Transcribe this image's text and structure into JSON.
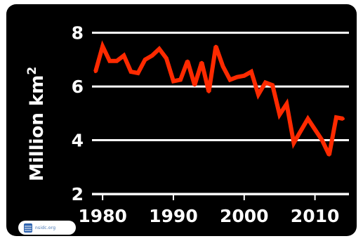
{
  "chart_data": {
    "type": "line",
    "title": "",
    "xlabel": "",
    "ylabel": "Million km",
    "ylabel_superscript": "2",
    "xlim": [
      1978.5,
      2014.8
    ],
    "ylim": [
      2,
      8.2
    ],
    "xticks": [
      1980,
      1990,
      2000,
      2010
    ],
    "yticks": [
      2,
      4,
      6,
      8
    ],
    "grid": "horizontal",
    "colors": {
      "line": "#ff2a00",
      "grid": "#ffffff",
      "background": "#000000",
      "text": "#ffffff"
    },
    "x": [
      1979,
      1980,
      1981,
      1982,
      1983,
      1984,
      1985,
      1986,
      1987,
      1988,
      1989,
      1990,
      1991,
      1992,
      1993,
      1994,
      1995,
      1996,
      1997,
      1998,
      1999,
      2000,
      2001,
      2002,
      2003,
      2004,
      2005,
      2006,
      2007,
      2008,
      2009,
      2010,
      2011,
      2012,
      2013,
      2014
    ],
    "series": [
      {
        "values": [
          6.55,
          7.5,
          6.95,
          6.95,
          7.15,
          6.55,
          6.5,
          7.0,
          7.15,
          7.4,
          7.05,
          6.2,
          6.25,
          6.95,
          6.05,
          6.9,
          5.8,
          7.5,
          6.75,
          6.25,
          6.35,
          6.4,
          6.55,
          5.7,
          6.15,
          6.05,
          4.95,
          5.35,
          3.9,
          4.35,
          4.8,
          4.4,
          4.0,
          3.45,
          4.85,
          4.8
        ]
      }
    ]
  },
  "logo": {
    "icon": "nsidc-globe-icon",
    "text": "nsidc.org"
  }
}
